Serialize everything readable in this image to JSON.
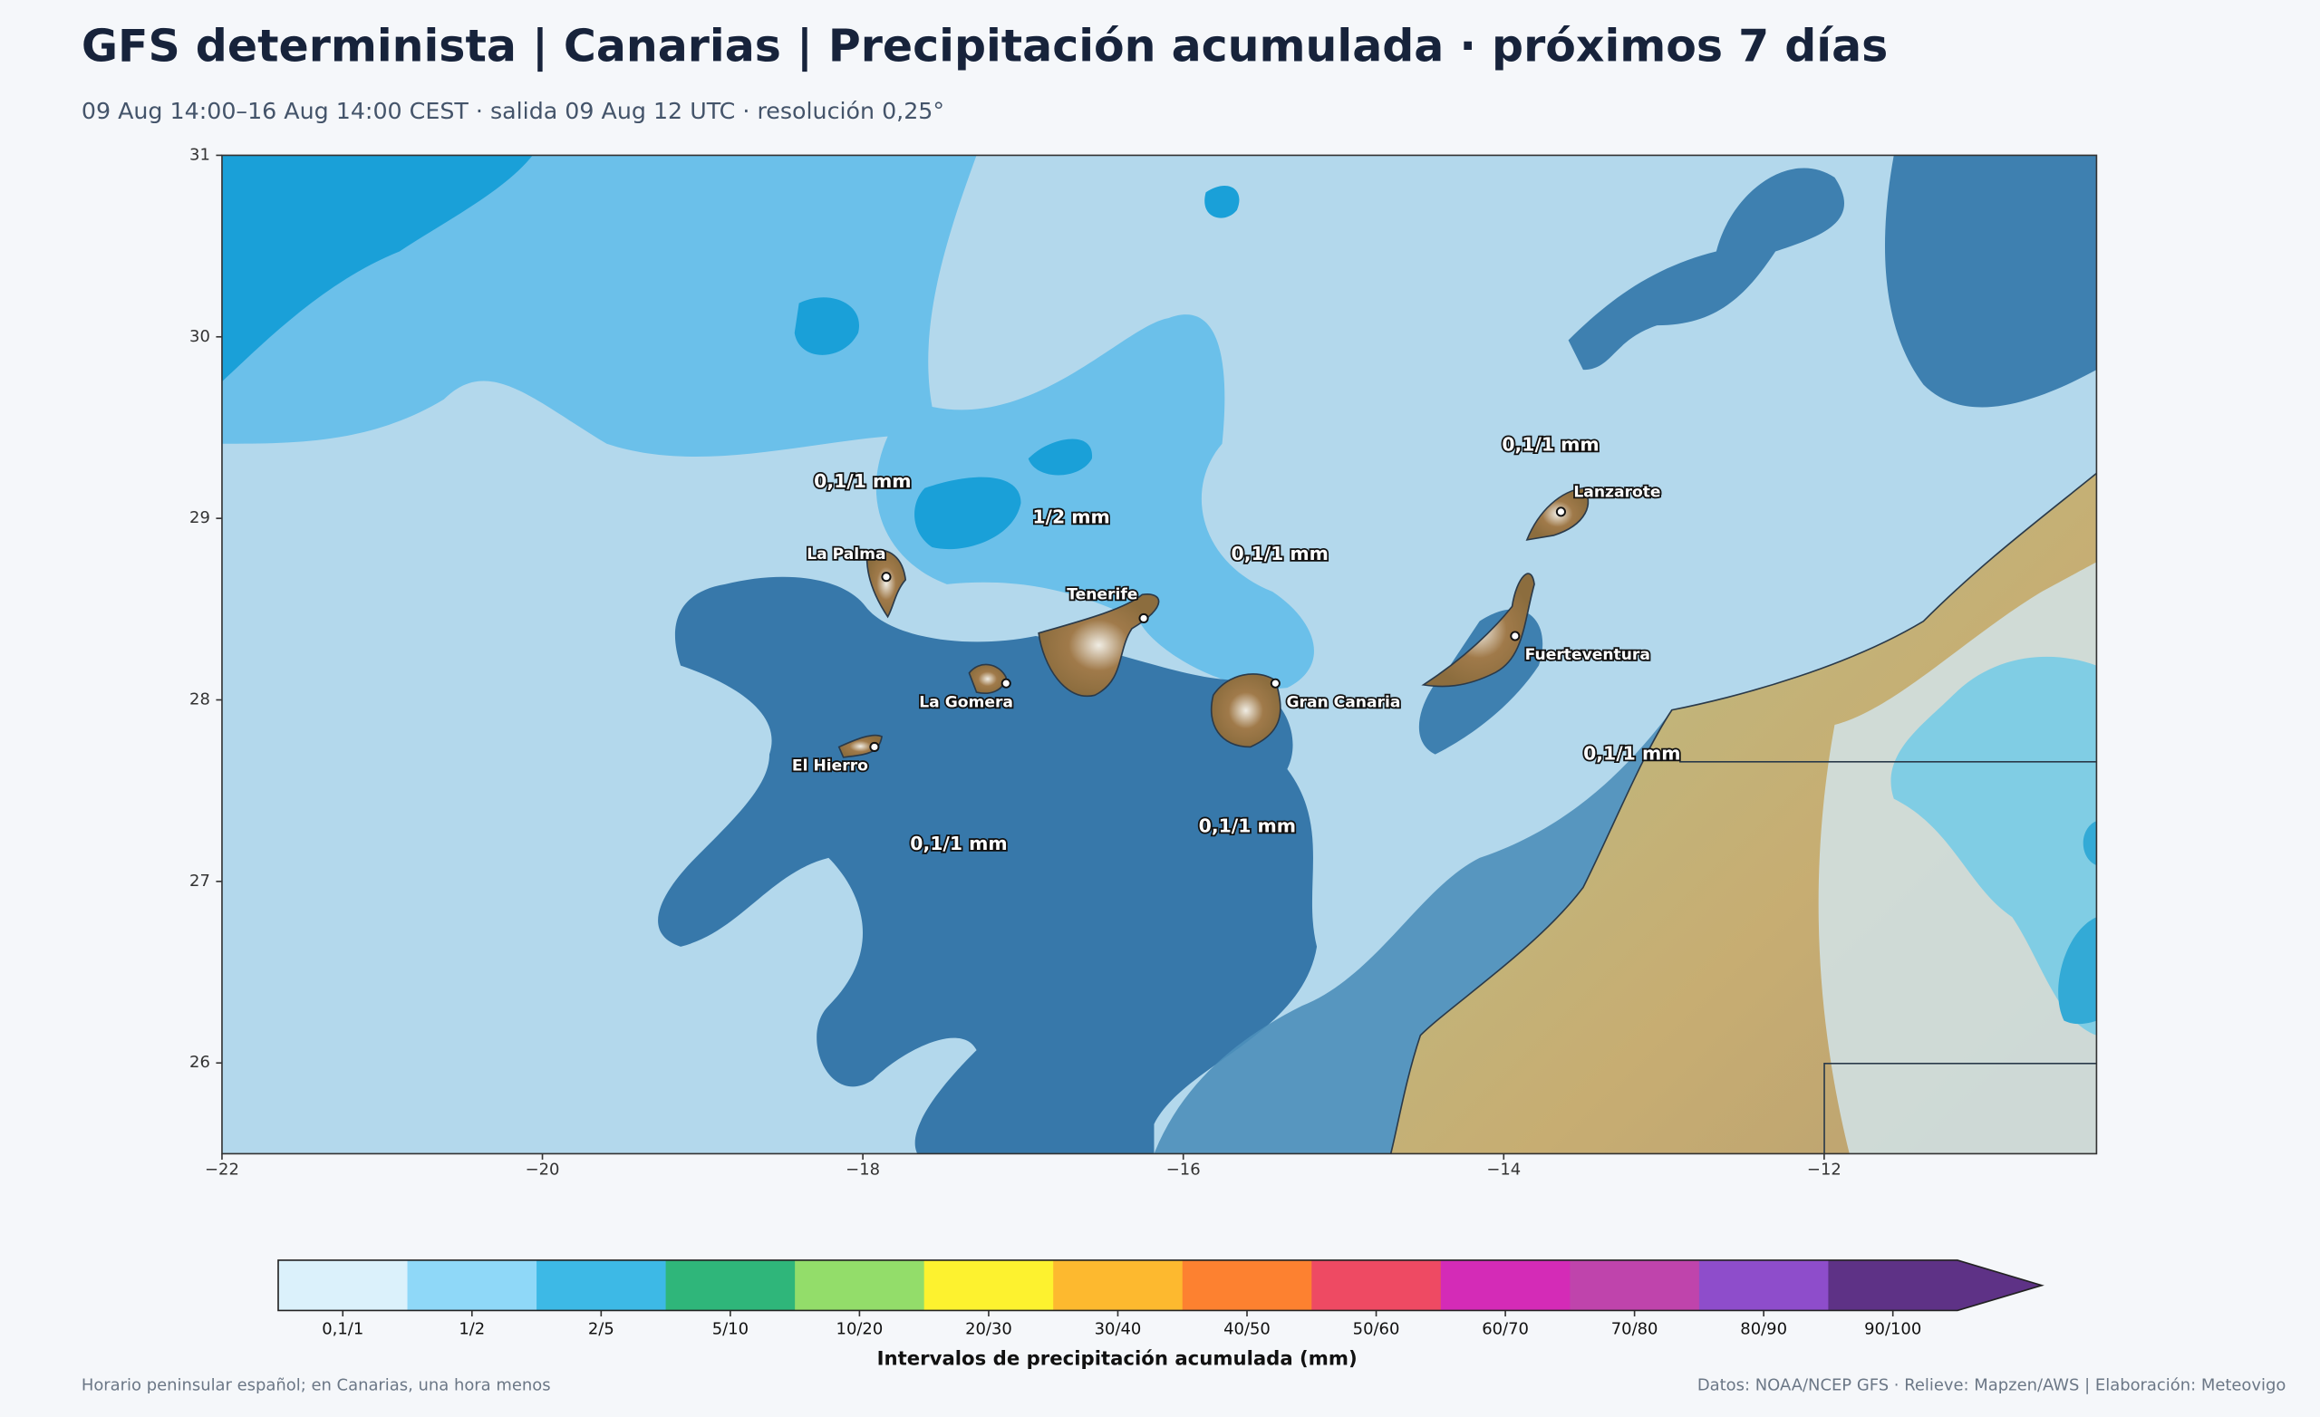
{
  "header": {
    "title": "GFS determinista | Canarias | Precipitación acumulada · próximos 7 días",
    "subtitle": "09 Aug 14:00–16 Aug 14:00 CEST · salida 09 Aug 12 UTC · resolución 0,25°"
  },
  "map": {
    "xlim": [
      -22,
      -10.3
    ],
    "ylim": [
      25.5,
      31
    ],
    "xticks": [
      {
        "value": -22,
        "label": "−22"
      },
      {
        "value": -20,
        "label": "−20"
      },
      {
        "value": -18,
        "label": "−18"
      },
      {
        "value": -16,
        "label": "−16"
      },
      {
        "value": -14,
        "label": "−14"
      },
      {
        "value": -12,
        "label": "−12"
      }
    ],
    "yticks": [
      26,
      27,
      28,
      29,
      30,
      31
    ],
    "island_labels": [
      "La Palma",
      "Tenerife",
      "La Gomera",
      "El Hierro",
      "Gran Canaria",
      "Fuerteventura",
      "Lanzarote"
    ],
    "contour_labels": [
      "0,1/1 mm",
      "1/2 mm",
      "0,1/1 mm",
      "0,1/1 mm",
      "0,1/1 mm",
      "0,1/1 mm",
      "0,1/1 mm"
    ]
  },
  "legend": {
    "title": "Intervalos de precipitación acumulada (mm)",
    "categories": [
      "0,1/1",
      "1/2",
      "2/5",
      "5/10",
      "10/20",
      "20/30",
      "30/40",
      "40/50",
      "50/60",
      "60/70",
      "70/80",
      "80/90",
      "90/100"
    ],
    "colors": [
      "#dbf1fb",
      "#8fd8f8",
      "#3db9e6",
      "#2fb67a",
      "#93dd6a",
      "#fdf22f",
      "#fdb92f",
      "#fd8130",
      "#ee4a63",
      "#d42bb7",
      "#bf44ac",
      "#8e4dcb",
      "#5e3286"
    ],
    "extend_color": "#5e3286"
  },
  "footer": {
    "left": "Horario peninsular español; en Canarias, una hora menos",
    "right": "Datos: NOAA/NCEP GFS · Relieve: Mapzen/AWS | Elaboración: Meteovigo"
  }
}
